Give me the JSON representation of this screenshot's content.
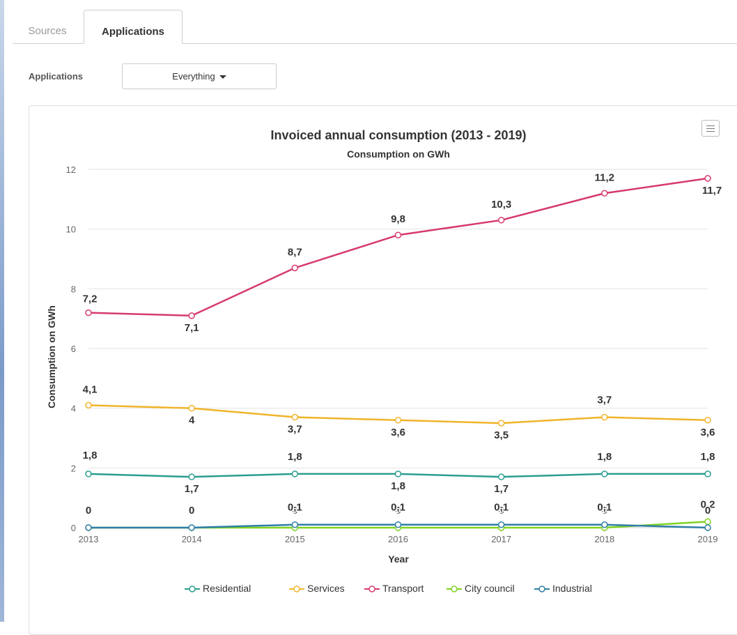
{
  "tabs": [
    {
      "label": "Sources",
      "active": false
    },
    {
      "label": "Applications",
      "active": true
    }
  ],
  "filter": {
    "label": "Applications",
    "selected": "Everything"
  },
  "menu_icon": "hamburger-menu-icon",
  "chart_data": {
    "type": "line",
    "title": "Invoiced annual consumption (2013 - 2019)",
    "subtitle": "Consumption on GWh",
    "xlabel": "Year",
    "ylabel": "Consumption on GWh",
    "categories": [
      "2013",
      "2014",
      "2015",
      "2016",
      "2017",
      "2018",
      "2019"
    ],
    "ylim": [
      0,
      12
    ],
    "yticks": [
      "0",
      "2",
      "4",
      "6",
      "8",
      "10",
      "12"
    ],
    "grid": true,
    "legend_position": "bottom",
    "series": [
      {
        "name": "Residential",
        "color": "#2a9d8f",
        "values": [
          1.8,
          1.7,
          1.8,
          1.8,
          1.7,
          1.8,
          1.8
        ],
        "labels": [
          "1,8",
          "1,7",
          "1,8",
          "1,8",
          "1,7",
          "1,8",
          "1,8"
        ]
      },
      {
        "name": "Services",
        "color": "#f0b429",
        "values": [
          4.1,
          4.0,
          3.7,
          3.6,
          3.5,
          3.7,
          3.6
        ],
        "labels": [
          "4,1",
          "4",
          "3,7",
          "3,6",
          "3,5",
          "3,7",
          "3,6"
        ]
      },
      {
        "name": "Transport",
        "color": "#d63a6c",
        "values": [
          7.2,
          7.1,
          8.7,
          9.8,
          10.3,
          11.2,
          11.7
        ],
        "labels": [
          "7,2",
          "7,1",
          "8,7",
          "9,8",
          "10,3",
          "11,2",
          "11,7"
        ]
      },
      {
        "name": "City council",
        "color": "#7ed321",
        "values": [
          0,
          0,
          0,
          0,
          0,
          0,
          0.2
        ],
        "labels": [
          "",
          "",
          "0",
          "0",
          "0",
          "0",
          "0,2"
        ]
      },
      {
        "name": "Industrial",
        "color": "#2f7ea6",
        "values": [
          0,
          0,
          0.1,
          0.1,
          0.1,
          0.1,
          0
        ],
        "labels": [
          "0",
          "0",
          "0,1",
          "0,1",
          "0,1",
          "0,1",
          "0"
        ]
      }
    ]
  }
}
